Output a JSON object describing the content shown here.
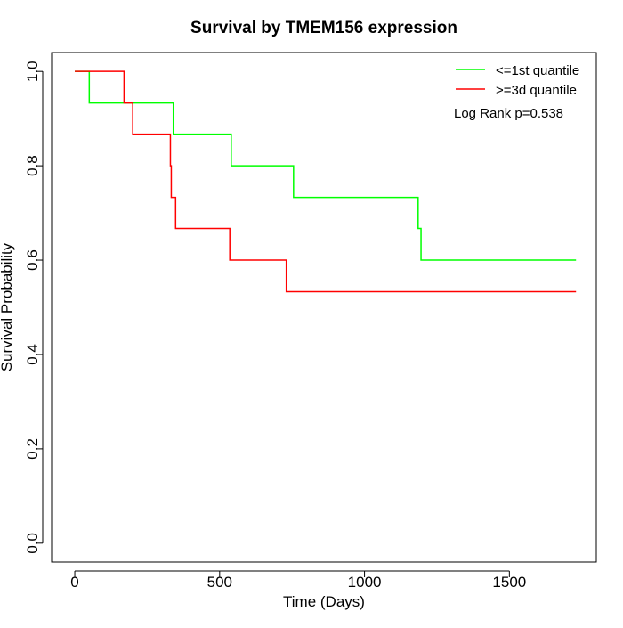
{
  "chart_data": {
    "type": "line",
    "title": "Survival by TMEM156 expression",
    "xlabel": "Time (Days)",
    "ylabel": "Survival Probability",
    "xlim": [
      -80,
      1800
    ],
    "ylim": [
      -0.04,
      1.04
    ],
    "x_ticks": [
      0,
      500,
      1000,
      1500
    ],
    "x_tick_labels": [
      "0",
      "500",
      "1000",
      "1500"
    ],
    "y_ticks": [
      0.0,
      0.2,
      0.4,
      0.6,
      0.8,
      1.0
    ],
    "y_tick_labels": [
      "0.0",
      "0.2",
      "0.4",
      "0.6",
      "0.8",
      "1.0"
    ],
    "grid": false,
    "legend_position": "top-right",
    "annotation": "Log Rank p=0.538",
    "series": [
      {
        "name": "<=1st quantile",
        "color": "#00ff00",
        "step": true,
        "points": [
          [
            0,
            1.0
          ],
          [
            50,
            0.933
          ],
          [
            340,
            0.867
          ],
          [
            540,
            0.8
          ],
          [
            755,
            0.733
          ],
          [
            1185,
            0.667
          ],
          [
            1195,
            0.6
          ],
          [
            1730,
            0.6
          ]
        ]
      },
      {
        "name": ">=3d quantile",
        "color": "#ff0000",
        "step": true,
        "points": [
          [
            0,
            1.0
          ],
          [
            170,
            0.933
          ],
          [
            200,
            0.867
          ],
          [
            330,
            0.8
          ],
          [
            333,
            0.733
          ],
          [
            348,
            0.667
          ],
          [
            535,
            0.6
          ],
          [
            730,
            0.533
          ],
          [
            1730,
            0.533
          ]
        ]
      }
    ]
  }
}
